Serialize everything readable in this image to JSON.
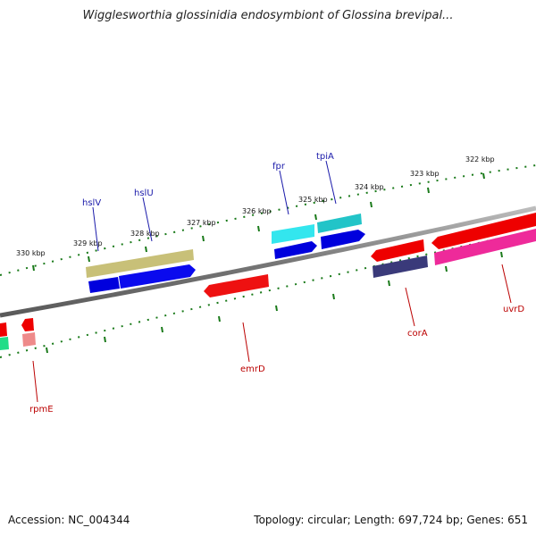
{
  "title": "Wigglesworthia glossinidia endosymbiont of Glossina brevipal...",
  "footer": {
    "accession": "Accession: NC_004344",
    "topology": "Topology: circular; Length: 697,724 bp; Genes: 651"
  },
  "scale_labels": [
    "330 kbp",
    "329 kbp",
    "328 kbp",
    "327 kbp",
    "326 kbp",
    "325 kbp",
    "324 kbp",
    "323 kbp",
    "322 kbp"
  ],
  "gene_labels": {
    "top": [
      "hslV",
      "hslU",
      "fpr",
      "tpiA"
    ],
    "bottom": [
      "rpmE",
      "emrD",
      "corA",
      "uvrD"
    ]
  },
  "colors": {
    "backbone": "#888888",
    "tick": "#1a7a1a",
    "top_label": "#1a1aaa",
    "bottom_label": "#bb0000"
  }
}
